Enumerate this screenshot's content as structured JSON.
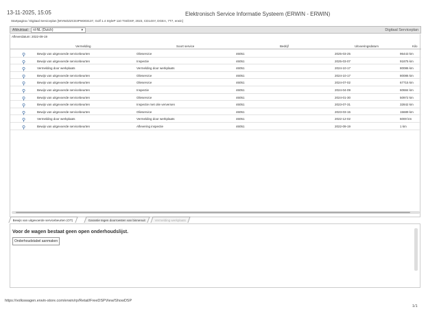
{
  "header": {
    "datetime": "13-11-2025, 15:05",
    "title": "Elektronisch Service Informatie Systeem (ERWIN - ERWIN)",
    "breadcrumb": "Startpagina / Digitaal Serviceplan [WVWZZZCD3PW303137, Golf 1.4 StyleP 110 TSI/DSF, 2023, CD14SY, DGEA, 7T7, erwin]"
  },
  "toolbar": {
    "language_label": "Afdruktaal:",
    "language_value": "nl-NL (Dutch)",
    "section": "Digitaal Serviceplan"
  },
  "delivery_date": "Afleverdatum: 2022-09-19",
  "table": {
    "columns": [
      "Vermelding",
      "Soort service",
      "Bedrijf",
      "Uitvoeringsdatum",
      "Kilo"
    ],
    "rows": [
      {
        "vermelding": "Bewijs van uitgevoerde servicebeurten",
        "soort": "Olieservice",
        "bedrijf": "46051",
        "datum": "2025-03-25",
        "km": "96443 km"
      },
      {
        "vermelding": "Bewijs van uitgevoerde servicebeurten",
        "soort": "Inspectie",
        "bedrijf": "46051",
        "datum": "2025-03-07",
        "km": "91875 km"
      },
      {
        "vermelding": "Vermelding door werkplaats",
        "soort": "Vermelding door werkplaats",
        "bedrijf": "46051",
        "datum": "2024-10-17",
        "km": "80086 km"
      },
      {
        "vermelding": "Bewijs van uitgevoerde servicebeurten",
        "soort": "Olieservice",
        "bedrijf": "46051",
        "datum": "2024-10-17",
        "km": "80086 km"
      },
      {
        "vermelding": "Bewijs van uitgevoerde servicebeurten",
        "soort": "Olieservice",
        "bedrijf": "46051",
        "datum": "2024-07-02",
        "km": "67715 km"
      },
      {
        "vermelding": "Bewijs van uitgevoerde servicebeurten",
        "soort": "Inspectie",
        "bedrijf": "46051",
        "datum": "2024-04-09",
        "km": "60684 km"
      },
      {
        "vermelding": "Bewijs van uitgevoerde servicebeurten",
        "soort": "Olieservice",
        "bedrijf": "46051",
        "datum": "2024-01-30",
        "km": "50972 km"
      },
      {
        "vermelding": "Bewijs van uitgevoerde servicebeurten",
        "soort": "Inspectie met olie verversen",
        "bedrijf": "46051",
        "datum": "2023-07-31",
        "km": "32842 km"
      },
      {
        "vermelding": "Bewijs van uitgevoerde servicebeurten",
        "soort": "Olieservice",
        "bedrijf": "46051",
        "datum": "2023-03-15",
        "km": "15689 km"
      },
      {
        "vermelding": "Vermelding door werkplaats",
        "soort": "Vermelding door werkplaats",
        "bedrijf": "46051",
        "datum": "2022-12-02",
        "km": "6000 km"
      },
      {
        "vermelding": "Bewijs van uitgevoerde servicebeurten",
        "soort": "Aflevering inspectie",
        "bedrijf": "46051",
        "datum": "2022-09-19",
        "km": "1 km"
      }
    ]
  },
  "tabs": [
    "Bewijs van uitgevoerde servicebeurten (OT)",
    "Garantie tegen doorroesten van binnenuit",
    "Vermelding werkplaats"
  ],
  "panel": {
    "message": "Voor de wagen bestaat geen open onderhoudslijst.",
    "button": "Onderhoudstabel aanmaken"
  },
  "footer": {
    "url": "https://volkswagen.erwin-store.com/erwin/rp/Retail/FreeDSPView/ShowDSP",
    "page": "1/1"
  }
}
